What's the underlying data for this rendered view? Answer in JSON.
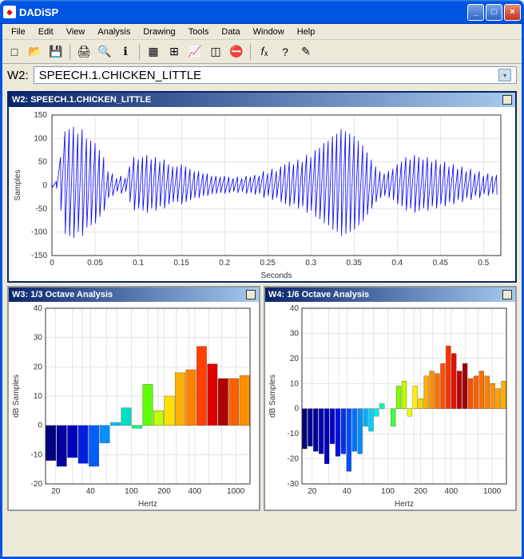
{
  "app": {
    "title": "DADiSP"
  },
  "menu": [
    "File",
    "Edit",
    "View",
    "Analysis",
    "Drawing",
    "Tools",
    "Data",
    "Window",
    "Help"
  ],
  "toolbar_icons": [
    "new",
    "open",
    "save",
    "print",
    "preview",
    "info",
    "grid",
    "gridtoggle",
    "chart",
    "3d",
    "stop",
    "fx",
    "help",
    "edit"
  ],
  "formula": {
    "label": "W2:",
    "value": "SPEECH.1.CHICKEN_LITTLE"
  },
  "waveform": {
    "title": "W2: SPEECH.1.CHICKEN_LITTLE",
    "type": "line",
    "ylabel": "Samples",
    "xlabel": "Seconds",
    "xlim": [
      0,
      0.52
    ],
    "ylim": [
      -150,
      150
    ],
    "xticks": [
      0,
      0.05,
      0.1,
      0.15,
      0.2,
      0.25,
      0.3,
      0.35,
      0.4,
      0.45,
      0.5
    ],
    "yticks": [
      -150,
      -100,
      -50,
      0,
      50,
      100,
      150
    ],
    "line_color": "#0000ff",
    "background_color": "#ffffff",
    "grid_color": "#cccccc",
    "envelope": [
      [
        0.0,
        5
      ],
      [
        0.005,
        8
      ],
      [
        0.01,
        60
      ],
      [
        0.015,
        115
      ],
      [
        0.02,
        120
      ],
      [
        0.025,
        125
      ],
      [
        0.03,
        110
      ],
      [
        0.035,
        120
      ],
      [
        0.04,
        100
      ],
      [
        0.045,
        95
      ],
      [
        0.05,
        90
      ],
      [
        0.055,
        75
      ],
      [
        0.06,
        60
      ],
      [
        0.065,
        30
      ],
      [
        0.07,
        25
      ],
      [
        0.075,
        15
      ],
      [
        0.08,
        20
      ],
      [
        0.085,
        15
      ],
      [
        0.09,
        40
      ],
      [
        0.095,
        60
      ],
      [
        0.1,
        55
      ],
      [
        0.105,
        60
      ],
      [
        0.11,
        65
      ],
      [
        0.115,
        55
      ],
      [
        0.12,
        60
      ],
      [
        0.125,
        50
      ],
      [
        0.13,
        55
      ],
      [
        0.135,
        45
      ],
      [
        0.14,
        40
      ],
      [
        0.145,
        40
      ],
      [
        0.15,
        45
      ],
      [
        0.155,
        40
      ],
      [
        0.16,
        35
      ],
      [
        0.165,
        30
      ],
      [
        0.17,
        30
      ],
      [
        0.175,
        25
      ],
      [
        0.18,
        25
      ],
      [
        0.185,
        20
      ],
      [
        0.19,
        20
      ],
      [
        0.195,
        18
      ],
      [
        0.2,
        20
      ],
      [
        0.205,
        18
      ],
      [
        0.21,
        15
      ],
      [
        0.215,
        18
      ],
      [
        0.22,
        15
      ],
      [
        0.225,
        20
      ],
      [
        0.23,
        18
      ],
      [
        0.235,
        22
      ],
      [
        0.24,
        20
      ],
      [
        0.245,
        30
      ],
      [
        0.25,
        25
      ],
      [
        0.255,
        35
      ],
      [
        0.26,
        30
      ],
      [
        0.265,
        40
      ],
      [
        0.27,
        45
      ],
      [
        0.275,
        50
      ],
      [
        0.28,
        45
      ],
      [
        0.285,
        55
      ],
      [
        0.29,
        50
      ],
      [
        0.295,
        65
      ],
      [
        0.3,
        60
      ],
      [
        0.305,
        75
      ],
      [
        0.31,
        80
      ],
      [
        0.315,
        90
      ],
      [
        0.32,
        95
      ],
      [
        0.325,
        105
      ],
      [
        0.33,
        110
      ],
      [
        0.335,
        120
      ],
      [
        0.34,
        115
      ],
      [
        0.345,
        110
      ],
      [
        0.35,
        105
      ],
      [
        0.355,
        95
      ],
      [
        0.36,
        85
      ],
      [
        0.365,
        70
      ],
      [
        0.37,
        55
      ],
      [
        0.375,
        40
      ],
      [
        0.38,
        30
      ],
      [
        0.385,
        25
      ],
      [
        0.39,
        30
      ],
      [
        0.395,
        35
      ],
      [
        0.4,
        45
      ],
      [
        0.405,
        50
      ],
      [
        0.41,
        60
      ],
      [
        0.415,
        55
      ],
      [
        0.42,
        65
      ],
      [
        0.425,
        60
      ],
      [
        0.43,
        55
      ],
      [
        0.435,
        60
      ],
      [
        0.44,
        50
      ],
      [
        0.445,
        55
      ],
      [
        0.45,
        45
      ],
      [
        0.455,
        50
      ],
      [
        0.46,
        40
      ],
      [
        0.465,
        45
      ],
      [
        0.47,
        35
      ],
      [
        0.475,
        40
      ],
      [
        0.48,
        30
      ],
      [
        0.485,
        35
      ],
      [
        0.49,
        25
      ],
      [
        0.495,
        30
      ],
      [
        0.5,
        20
      ],
      [
        0.505,
        25
      ],
      [
        0.51,
        20
      ],
      [
        0.515,
        22
      ]
    ]
  },
  "octave3": {
    "title": "W3: 1/3 Octave Analysis",
    "type": "bar",
    "ylabel": "dB Samples",
    "xlabel": "Hertz",
    "ylim": [
      -20,
      40
    ],
    "yticks": [
      -20,
      -10,
      0,
      10,
      20,
      30,
      40
    ],
    "xticks_labels": [
      "20",
      "40",
      "100",
      "200",
      "400",
      "1000"
    ],
    "xticks_pos": [
      0.05,
      0.22,
      0.42,
      0.58,
      0.73,
      0.93
    ],
    "vgrid_pos": [
      0.05,
      0.13,
      0.18,
      0.22,
      0.3,
      0.35,
      0.42,
      0.5,
      0.55,
      0.58,
      0.64,
      0.7,
      0.73,
      0.8,
      0.86,
      0.93
    ],
    "bars": [
      {
        "v": -12,
        "c": "#000080"
      },
      {
        "v": -14,
        "c": "#0000a0"
      },
      {
        "v": -11,
        "c": "#0000c0"
      },
      {
        "v": -13,
        "c": "#0020e0"
      },
      {
        "v": -14,
        "c": "#0060ff"
      },
      {
        "v": -6,
        "c": "#0090ff"
      },
      {
        "v": 1,
        "c": "#00c0ff"
      },
      {
        "v": 6,
        "c": "#00e0c0"
      },
      {
        "v": -1,
        "c": "#00ff80"
      },
      {
        "v": 14,
        "c": "#60ff00"
      },
      {
        "v": 5,
        "c": "#c0ff00"
      },
      {
        "v": 10,
        "c": "#ffe000"
      },
      {
        "v": 18,
        "c": "#ffb000"
      },
      {
        "v": 19,
        "c": "#ff8000"
      },
      {
        "v": 27,
        "c": "#ff4000"
      },
      {
        "v": 21,
        "c": "#e00000"
      },
      {
        "v": 16,
        "c": "#b00000"
      },
      {
        "v": 16,
        "c": "#ff6000"
      },
      {
        "v": 17,
        "c": "#ff9000"
      }
    ],
    "background_color": "#ffffff",
    "grid_color": "#cccccc"
  },
  "octave6": {
    "title": "W4: 1/6 Octave Analysis",
    "type": "bar",
    "ylabel": "dB Samples",
    "xlabel": "Hertz",
    "ylim": [
      -30,
      40
    ],
    "yticks": [
      -30,
      -20,
      -10,
      0,
      10,
      20,
      30,
      40
    ],
    "xticks_labels": [
      "20",
      "40",
      "100",
      "200",
      "400",
      "1000"
    ],
    "xticks_pos": [
      0.05,
      0.22,
      0.42,
      0.58,
      0.73,
      0.93
    ],
    "vgrid_pos": [
      0.05,
      0.13,
      0.18,
      0.22,
      0.3,
      0.35,
      0.42,
      0.5,
      0.55,
      0.58,
      0.64,
      0.7,
      0.73,
      0.8,
      0.86,
      0.93
    ],
    "bars": [
      {
        "v": -16,
        "c": "#000080"
      },
      {
        "v": -15,
        "c": "#000090"
      },
      {
        "v": -17,
        "c": "#0000a0"
      },
      {
        "v": -18,
        "c": "#0000b0"
      },
      {
        "v": -22,
        "c": "#0000c0"
      },
      {
        "v": -14,
        "c": "#0000d0"
      },
      {
        "v": -19,
        "c": "#0010e0"
      },
      {
        "v": -18,
        "c": "#0030f0"
      },
      {
        "v": -25,
        "c": "#0050ff"
      },
      {
        "v": -17,
        "c": "#0070ff"
      },
      {
        "v": -18,
        "c": "#0090ff"
      },
      {
        "v": -7,
        "c": "#00b0ff"
      },
      {
        "v": -9,
        "c": "#00d0ff"
      },
      {
        "v": -3,
        "c": "#00f0e0"
      },
      {
        "v": 2,
        "c": "#00ffb0"
      },
      {
        "v": 0,
        "c": "#00ff80"
      },
      {
        "v": -7,
        "c": "#40ff40"
      },
      {
        "v": 9,
        "c": "#80ff00"
      },
      {
        "v": 11,
        "c": "#c0ff00"
      },
      {
        "v": -3,
        "c": "#f0ff00"
      },
      {
        "v": 9,
        "c": "#fff000"
      },
      {
        "v": 4,
        "c": "#ffd000"
      },
      {
        "v": 13,
        "c": "#ffb000"
      },
      {
        "v": 15,
        "c": "#ff9000"
      },
      {
        "v": 14,
        "c": "#ff7000"
      },
      {
        "v": 18,
        "c": "#ff5000"
      },
      {
        "v": 25,
        "c": "#ff3000"
      },
      {
        "v": 22,
        "c": "#e01000"
      },
      {
        "v": 15,
        "c": "#c00000"
      },
      {
        "v": 18,
        "c": "#a00000"
      },
      {
        "v": 12,
        "c": "#ff5000"
      },
      {
        "v": 13,
        "c": "#ff6000"
      },
      {
        "v": 15,
        "c": "#ff7000"
      },
      {
        "v": 13,
        "c": "#ff8000"
      },
      {
        "v": 10,
        "c": "#ff9000"
      },
      {
        "v": 8,
        "c": "#ffa000"
      },
      {
        "v": 11,
        "c": "#ffb000"
      }
    ],
    "background_color": "#ffffff",
    "grid_color": "#cccccc"
  }
}
